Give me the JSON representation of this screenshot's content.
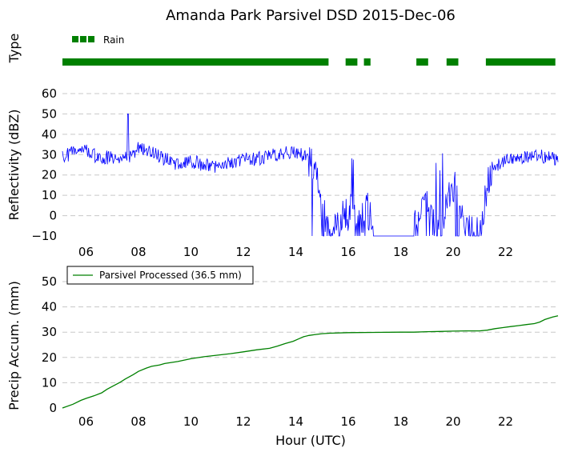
{
  "title": "Amanda Park Parsivel DSD 2015-Dec-06",
  "colors": {
    "type_bar": "#008000",
    "reflectivity": "#0000ff",
    "precip": "#008000",
    "grid": "#c8c8c8"
  },
  "chart_data": [
    {
      "type": "bar",
      "name": "type-strip",
      "ylabel": "Type",
      "legend": {
        "labels": [
          "Rain"
        ],
        "position": "top-left"
      },
      "xlim": [
        5.1,
        24.0
      ],
      "segments": [
        [
          5.1,
          15.25
        ],
        [
          15.9,
          16.35
        ],
        [
          16.6,
          16.85
        ],
        [
          18.6,
          19.05
        ],
        [
          19.75,
          20.2
        ],
        [
          21.25,
          23.9
        ]
      ]
    },
    {
      "type": "line",
      "name": "reflectivity",
      "ylabel": "Reflectivity (dBZ)",
      "xlim": [
        5.1,
        24.0
      ],
      "ylim": [
        -10,
        60
      ],
      "grid": true,
      "yticks": [
        "−10",
        "0",
        "10",
        "20",
        "30",
        "40",
        "50",
        "60"
      ],
      "xticks": [
        "06",
        "08",
        "10",
        "12",
        "14",
        "16",
        "18",
        "20",
        "22"
      ],
      "floor_value": -10,
      "spike": {
        "x": 7.6,
        "y": 50
      },
      "profile": [
        [
          5.1,
          29
        ],
        [
          5.5,
          31
        ],
        [
          6.0,
          32
        ],
        [
          6.5,
          28
        ],
        [
          7.0,
          29
        ],
        [
          7.5,
          28
        ],
        [
          8.0,
          33
        ],
        [
          8.5,
          31
        ],
        [
          9.0,
          28
        ],
        [
          9.5,
          25
        ],
        [
          10.0,
          27
        ],
        [
          10.5,
          25
        ],
        [
          11.0,
          24
        ],
        [
          11.5,
          26
        ],
        [
          12.0,
          28
        ],
        [
          12.5,
          28
        ],
        [
          13.0,
          29
        ],
        [
          13.5,
          31
        ],
        [
          14.0,
          31
        ],
        [
          14.3,
          30
        ],
        [
          14.5,
          27
        ],
        [
          14.8,
          18
        ],
        [
          15.0,
          5
        ],
        [
          15.2,
          -8
        ],
        [
          15.4,
          -7
        ],
        [
          15.8,
          0
        ],
        [
          16.1,
          2
        ],
        [
          16.4,
          -5
        ],
        [
          16.7,
          5
        ],
        [
          17.0,
          -10
        ],
        [
          18.5,
          -10
        ],
        [
          18.7,
          5
        ],
        [
          18.9,
          10
        ],
        [
          19.1,
          3
        ],
        [
          19.4,
          -10
        ],
        [
          19.8,
          8
        ],
        [
          20.0,
          12
        ],
        [
          20.2,
          5
        ],
        [
          20.4,
          -2
        ],
        [
          20.7,
          -8
        ],
        [
          21.0,
          -10
        ],
        [
          21.3,
          15
        ],
        [
          21.6,
          25
        ],
        [
          22.0,
          27
        ],
        [
          22.5,
          28
        ],
        [
          23.0,
          30
        ],
        [
          23.5,
          29
        ],
        [
          24.0,
          28
        ]
      ]
    },
    {
      "type": "line",
      "name": "precip-accumulation",
      "ylabel": "Precip Accum. (mm)",
      "xlabel": "Hour (UTC)",
      "xlim": [
        5.1,
        24.0
      ],
      "ylim": [
        0,
        50
      ],
      "grid": true,
      "yticks": [
        "0",
        "10",
        "20",
        "30",
        "40",
        "50"
      ],
      "xticks": [
        "06",
        "08",
        "10",
        "12",
        "14",
        "16",
        "18",
        "20",
        "22"
      ],
      "legend": {
        "labels": [
          "Parsivel Processed (36.5 mm)"
        ],
        "position": "top-left"
      },
      "series": [
        {
          "name": "Parsivel Processed (36.5 mm)",
          "x": [
            5.1,
            5.5,
            5.8,
            6.0,
            6.3,
            6.6,
            6.8,
            7.0,
            7.3,
            7.5,
            7.8,
            8.0,
            8.3,
            8.5,
            8.8,
            9.0,
            9.5,
            10.0,
            10.5,
            11.0,
            11.5,
            12.0,
            12.5,
            13.0,
            13.3,
            13.6,
            13.9,
            14.1,
            14.3,
            14.5,
            14.7,
            15.0,
            15.3,
            16.0,
            17.0,
            18.0,
            18.5,
            19.0,
            19.5,
            20.0,
            20.5,
            21.0,
            21.3,
            21.6,
            21.9,
            22.2,
            22.5,
            22.8,
            23.1,
            23.3,
            23.5,
            23.8,
            24.0
          ],
          "y": [
            0.0,
            1.5,
            3.0,
            3.8,
            4.8,
            6.0,
            7.4,
            8.5,
            10.2,
            11.5,
            13.2,
            14.5,
            15.8,
            16.5,
            17.0,
            17.6,
            18.4,
            19.5,
            20.3,
            20.9,
            21.5,
            22.2,
            23.0,
            23.6,
            24.5,
            25.5,
            26.4,
            27.3,
            28.2,
            28.7,
            29.0,
            29.4,
            29.6,
            29.8,
            29.9,
            30.0,
            30.0,
            30.2,
            30.3,
            30.4,
            30.5,
            30.5,
            30.8,
            31.4,
            31.8,
            32.2,
            32.6,
            33.0,
            33.4,
            34.0,
            35.0,
            36.0,
            36.5
          ]
        }
      ]
    }
  ]
}
